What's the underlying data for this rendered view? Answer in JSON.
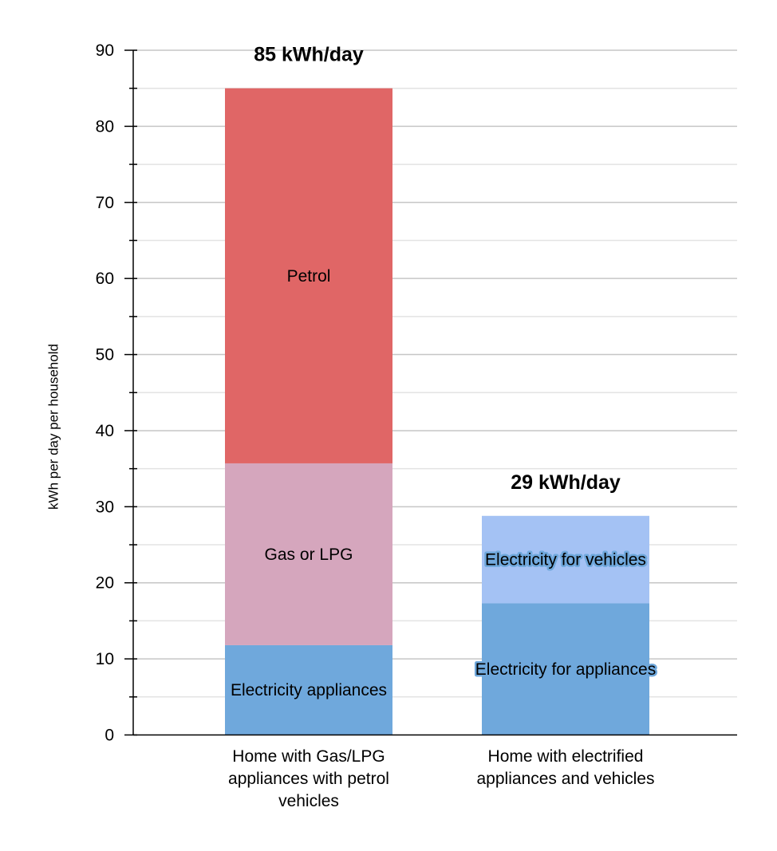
{
  "chart_data": {
    "type": "bar",
    "stacked": true,
    "title": "",
    "xlabel": "",
    "ylabel": "kWh per day per household",
    "ylim": [
      0,
      90
    ],
    "major_ticks": [
      0,
      10,
      20,
      30,
      40,
      50,
      60,
      70,
      80,
      90
    ],
    "minor_tick_step": 5,
    "grid": true,
    "bars": [
      {
        "category_lines": [
          "Home with Gas/LPG",
          "appliances with petrol",
          "vehicles"
        ],
        "total_label": "85 kWh/day",
        "segments": [
          {
            "name": "Electricity appliances",
            "value": 11.8,
            "color": "#6fa8dc",
            "halo": true
          },
          {
            "name": "Gas or LPG",
            "value": 23.9,
            "color": "#d5a6bd",
            "halo": false
          },
          {
            "name": "Petrol",
            "value": 49.3,
            "color": "#e06666",
            "halo": false
          }
        ]
      },
      {
        "category_lines": [
          "Home with electrified",
          "appliances and vehicles"
        ],
        "total_label": "29 kWh/day",
        "segments": [
          {
            "name": "Electricity for appliances",
            "value": 17.3,
            "color": "#6fa8dc",
            "halo": true
          },
          {
            "name": "Electricity for vehicles",
            "value": 11.5,
            "color": "#a4c2f4",
            "halo": true
          }
        ]
      }
    ]
  }
}
